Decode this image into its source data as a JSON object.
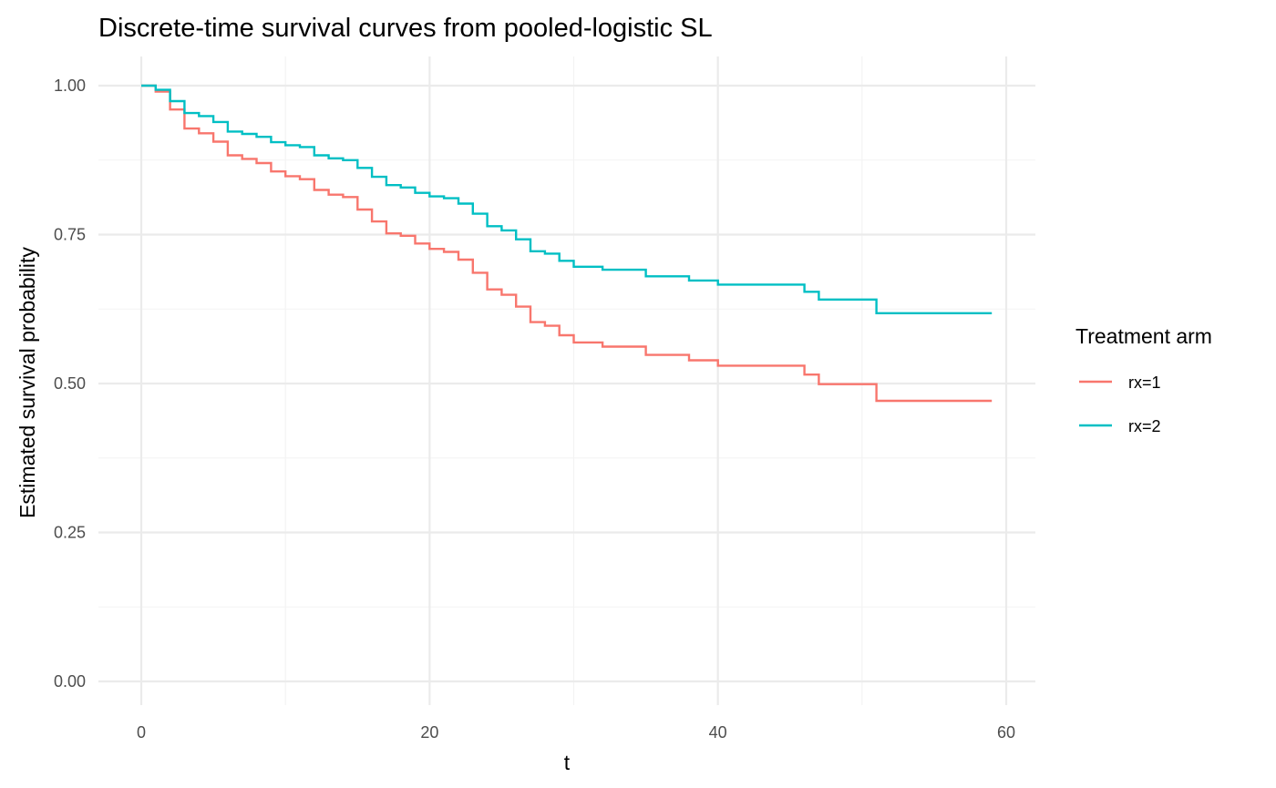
{
  "chart_data": {
    "type": "line",
    "step": true,
    "title": "Discrete-time survival curves from pooled-logistic SL",
    "xlabel": "t",
    "ylabel": "Estimated survival probability",
    "xlim": [
      0,
      60
    ],
    "ylim": [
      0,
      1
    ],
    "x_ticks": [
      0,
      20,
      40,
      60
    ],
    "x_tick_labels": [
      "0",
      "20",
      "40",
      "60"
    ],
    "x_minor_ticks": [
      10,
      30,
      50
    ],
    "y_ticks": [
      0,
      0.25,
      0.5,
      0.75,
      1
    ],
    "y_tick_labels": [
      "0.00",
      "0.25",
      "0.50",
      "0.75",
      "1.00"
    ],
    "y_minor_ticks": [
      0.125,
      0.375,
      0.625,
      0.875
    ],
    "grid": true,
    "legend": {
      "title": "Treatment arm",
      "position": "right"
    },
    "series": [
      {
        "name": "rx=1",
        "color": "#F8766D",
        "x": [
          0,
          1,
          2,
          3,
          4,
          5,
          6,
          7,
          8,
          9,
          10,
          11,
          12,
          13,
          14,
          15,
          16,
          17,
          18,
          19,
          20,
          21,
          22,
          23,
          24,
          25,
          26,
          27,
          28,
          29,
          30,
          31,
          32,
          33,
          34,
          35,
          36,
          37,
          38,
          39,
          40,
          41,
          42,
          43,
          44,
          45,
          46,
          47,
          48,
          49,
          50,
          51,
          52,
          53,
          54,
          55,
          56,
          57,
          58,
          59
        ],
        "values": [
          1.0,
          0.99,
          0.96,
          0.928,
          0.92,
          0.906,
          0.883,
          0.877,
          0.87,
          0.856,
          0.848,
          0.843,
          0.825,
          0.817,
          0.813,
          0.792,
          0.772,
          0.752,
          0.748,
          0.735,
          0.726,
          0.721,
          0.708,
          0.686,
          0.658,
          0.649,
          0.629,
          0.603,
          0.597,
          0.581,
          0.569,
          0.569,
          0.562,
          0.562,
          0.562,
          0.548,
          0.548,
          0.548,
          0.539,
          0.539,
          0.53,
          0.53,
          0.53,
          0.53,
          0.53,
          0.53,
          0.515,
          0.499,
          0.499,
          0.499,
          0.499,
          0.471,
          0.471,
          0.471,
          0.471,
          0.471,
          0.471,
          0.471,
          0.471,
          0.471
        ]
      },
      {
        "name": "rx=2",
        "color": "#00BFC4",
        "x": [
          0,
          1,
          2,
          3,
          4,
          5,
          6,
          7,
          8,
          9,
          10,
          11,
          12,
          13,
          14,
          15,
          16,
          17,
          18,
          19,
          20,
          21,
          22,
          23,
          24,
          25,
          26,
          27,
          28,
          29,
          30,
          31,
          32,
          33,
          34,
          35,
          36,
          37,
          38,
          39,
          40,
          41,
          42,
          43,
          44,
          45,
          46,
          47,
          48,
          49,
          50,
          51,
          52,
          53,
          54,
          55,
          56,
          57,
          58,
          59
        ],
        "values": [
          1.0,
          0.993,
          0.974,
          0.954,
          0.949,
          0.939,
          0.923,
          0.919,
          0.914,
          0.905,
          0.9,
          0.897,
          0.883,
          0.878,
          0.875,
          0.862,
          0.847,
          0.833,
          0.829,
          0.82,
          0.814,
          0.811,
          0.802,
          0.785,
          0.764,
          0.757,
          0.742,
          0.722,
          0.718,
          0.706,
          0.696,
          0.696,
          0.691,
          0.691,
          0.691,
          0.68,
          0.68,
          0.68,
          0.673,
          0.673,
          0.666,
          0.666,
          0.666,
          0.666,
          0.666,
          0.666,
          0.654,
          0.641,
          0.641,
          0.641,
          0.641,
          0.618,
          0.618,
          0.618,
          0.618,
          0.618,
          0.618,
          0.618,
          0.618,
          0.618
        ]
      }
    ]
  }
}
